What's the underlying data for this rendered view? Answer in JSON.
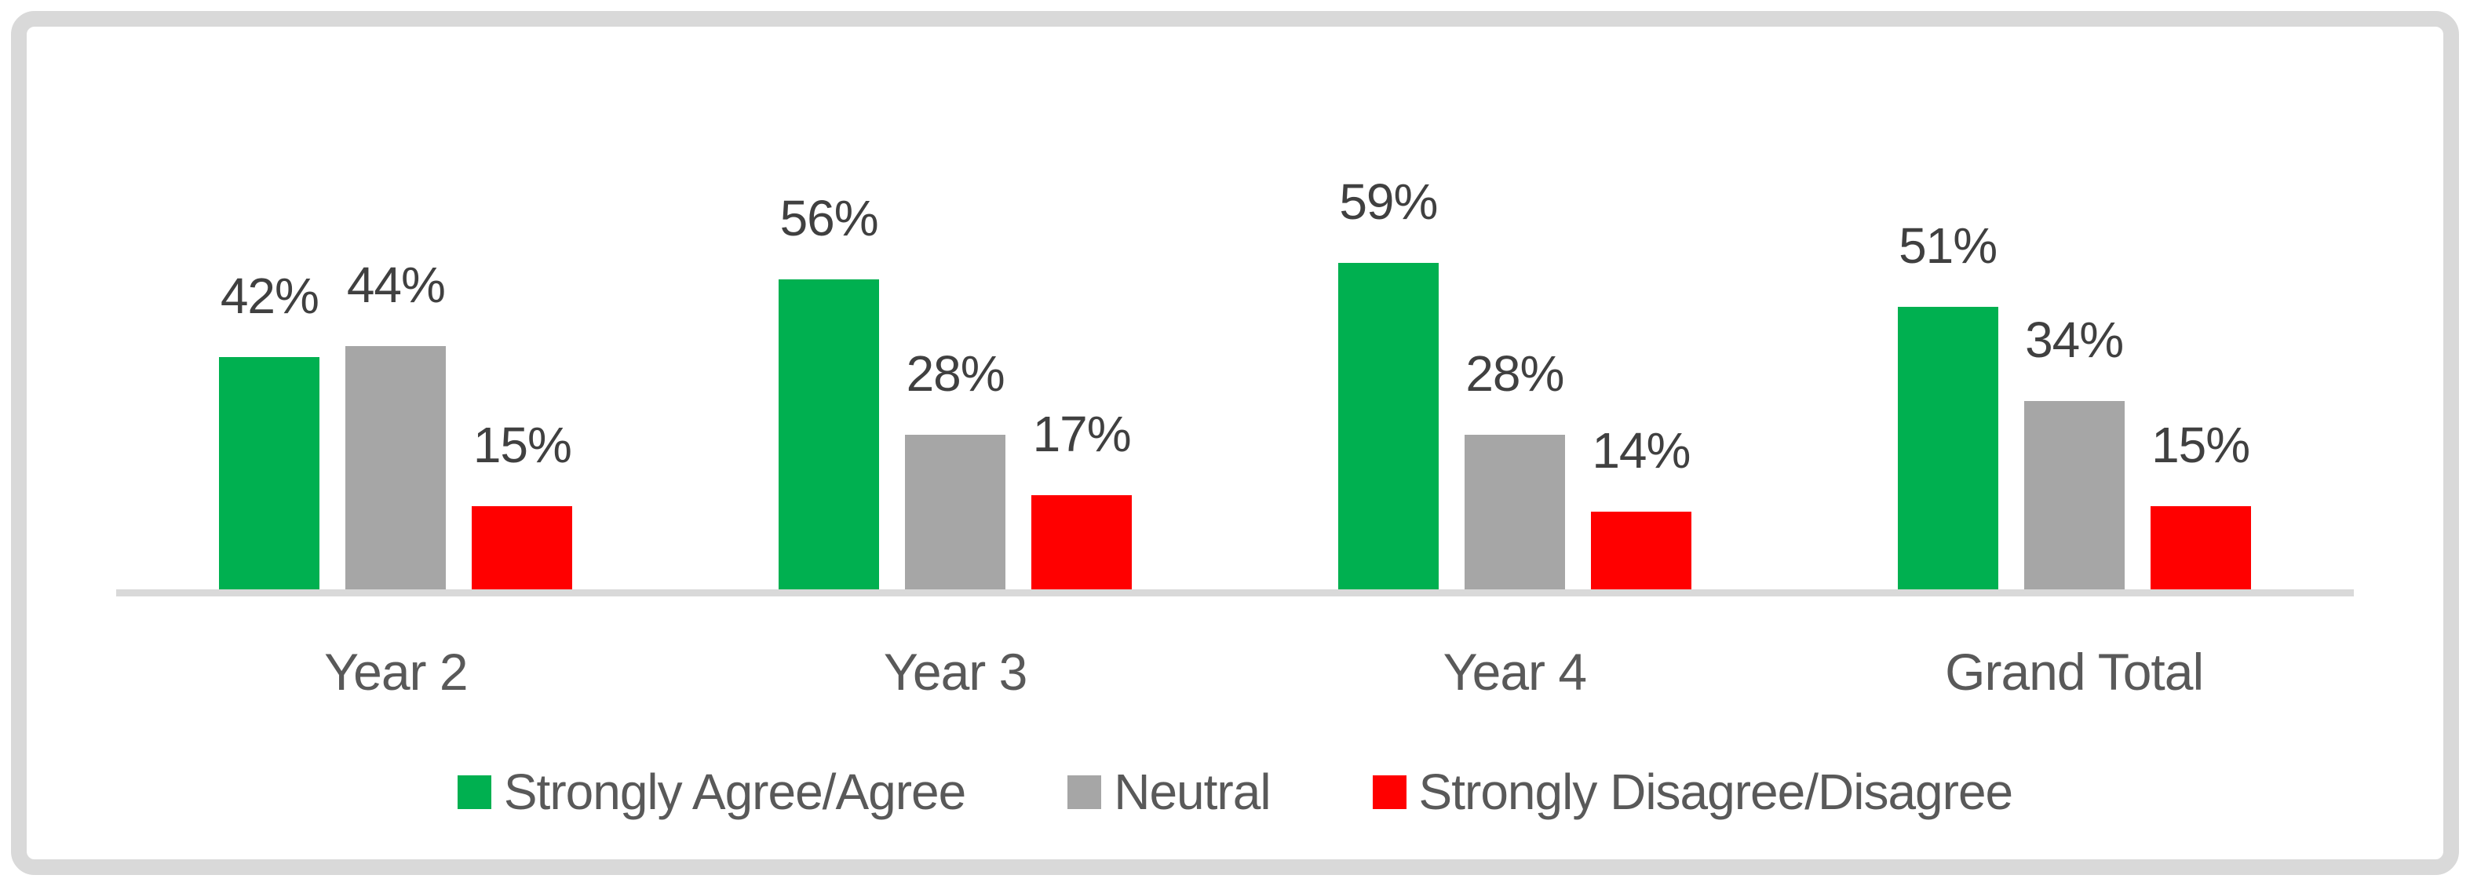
{
  "chart_data": {
    "type": "bar",
    "title": "",
    "xlabel": "",
    "ylabel": "",
    "categories": [
      "Year 2",
      "Year 3",
      "Year 4",
      "Grand Total"
    ],
    "series": [
      {
        "name": "Strongly Agree/Agree",
        "color": "#00B050",
        "values": [
          42,
          56,
          59,
          51
        ]
      },
      {
        "name": "Neutral",
        "color": "#A6A6A6",
        "values": [
          44,
          28,
          28,
          34
        ]
      },
      {
        "name": "Strongly Disagree/Disagree",
        "color": "#FF0000",
        "values": [
          15,
          17,
          14,
          15
        ]
      }
    ],
    "value_suffix": "%",
    "ylim": [
      0,
      65
    ],
    "grid": false,
    "axis_ticks_visible": false,
    "data_labels": "outside-end",
    "legend_position": "bottom"
  },
  "colors": {
    "background": "#FFFFFF",
    "frame_border": "#D9D9D9",
    "axis_line": "#D9D9D9",
    "data_label_text": "#404040",
    "category_label_text": "#595959",
    "legend_text": "#595959"
  }
}
